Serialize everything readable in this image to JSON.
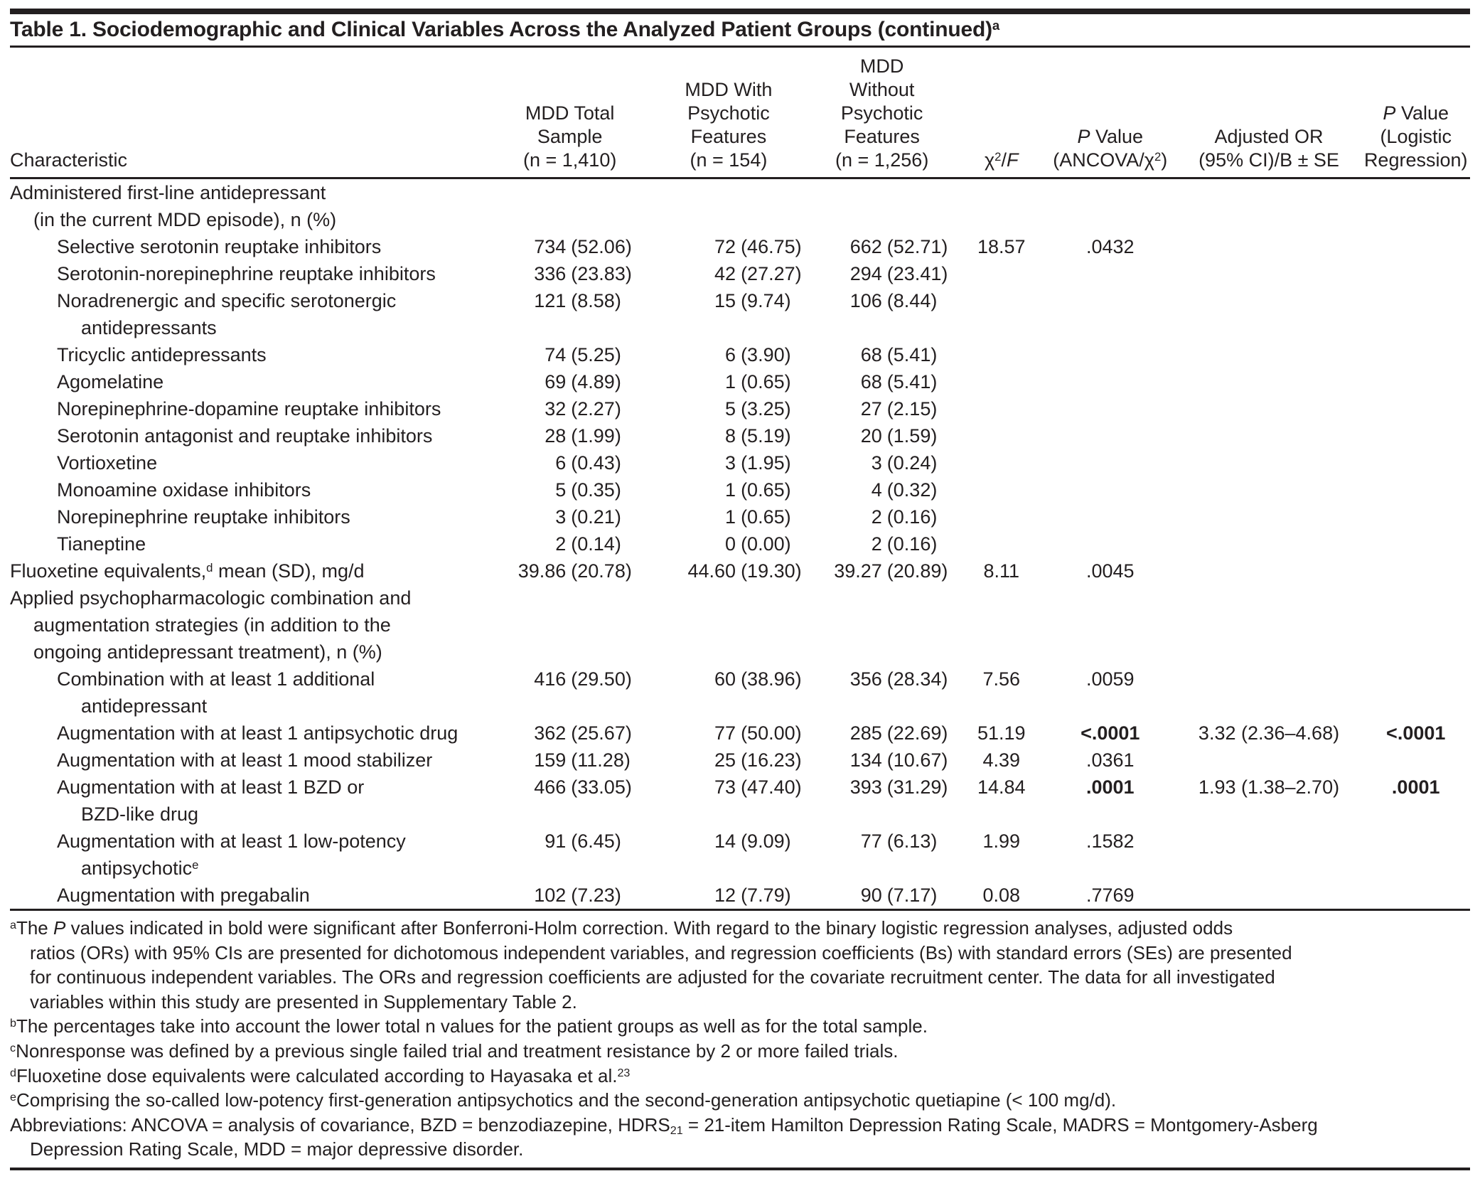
{
  "title": "Table 1. Sociodemographic and Clinical Variables Across the Analyzed Patient Groups (continued)^{a}",
  "colors": {
    "text": "#231f20",
    "rule": "#231f20",
    "background": "#ffffff",
    "significant_bold": "#231f20"
  },
  "table": {
    "headers": [
      "Characteristic",
      "MDD Total\nSample\n(n = 1,410)",
      "MDD With\nPsychotic\nFeatures\n(n = 154)",
      "MDD\nWithout\nPsychotic\nFeatures\n(n = 1,256)",
      "χ^{2}/*F*",
      "*P* Value\n(ANCOVA/χ^{2})",
      "Adjusted OR\n(95% CI)/B ± SE",
      "*P* Value\n(Logistic\nRegression)"
    ],
    "rows": [
      {
        "label": "Administered first-line antidepressant",
        "indent": 0,
        "cells": []
      },
      {
        "label": "(in the current MDD episode), n (%)",
        "indent": 1,
        "cells": []
      },
      {
        "label": "Selective serotonin reuptake inhibitors",
        "indent": 2,
        "cells": [
          "734 (52.06)",
          "72 (46.75)",
          "662 (52.71)",
          "18.57",
          ".0432",
          "",
          ""
        ]
      },
      {
        "label": "Serotonin-norepinephrine reuptake inhibitors",
        "indent": 2,
        "cells": [
          "336 (23.83)",
          "42 (27.27)",
          "294 (23.41)",
          "",
          "",
          "",
          ""
        ]
      },
      {
        "label": "Noradrenergic and specific serotonergic",
        "indent": 2,
        "cells": [
          "121 (8.58)",
          "15 (9.74)",
          "106 (8.44)",
          "",
          "",
          "",
          ""
        ]
      },
      {
        "label": "antidepressants",
        "indent": 3,
        "cells": []
      },
      {
        "label": "Tricyclic antidepressants",
        "indent": 2,
        "cells": [
          "74 (5.25)",
          "6 (3.90)",
          "68 (5.41)",
          "",
          "",
          "",
          ""
        ]
      },
      {
        "label": "Agomelatine",
        "indent": 2,
        "cells": [
          "69 (4.89)",
          "1 (0.65)",
          "68 (5.41)",
          "",
          "",
          "",
          ""
        ]
      },
      {
        "label": "Norepinephrine-dopamine reuptake inhibitors",
        "indent": 2,
        "cells": [
          "32 (2.27)",
          "5 (3.25)",
          "27 (2.15)",
          "",
          "",
          "",
          ""
        ]
      },
      {
        "label": "Serotonin antagonist and reuptake inhibitors",
        "indent": 2,
        "cells": [
          "28 (1.99)",
          "8 (5.19)",
          "20 (1.59)",
          "",
          "",
          "",
          ""
        ]
      },
      {
        "label": "Vortioxetine",
        "indent": 2,
        "cells": [
          "6 (0.43)",
          "3 (1.95)",
          "3 (0.24)",
          "",
          "",
          "",
          ""
        ]
      },
      {
        "label": "Monoamine oxidase inhibitors",
        "indent": 2,
        "cells": [
          "5 (0.35)",
          "1 (0.65)",
          "4 (0.32)",
          "",
          "",
          "",
          ""
        ]
      },
      {
        "label": "Norepinephrine reuptake inhibitors",
        "indent": 2,
        "cells": [
          "3 (0.21)",
          "1 (0.65)",
          "2 (0.16)",
          "",
          "",
          "",
          ""
        ]
      },
      {
        "label": "Tianeptine",
        "indent": 2,
        "cells": [
          "2 (0.14)",
          "0 (0.00)",
          "2 (0.16)",
          "",
          "",
          "",
          ""
        ]
      },
      {
        "label": "Fluoxetine equivalents,^{d} mean (SD), mg/d",
        "indent": 0,
        "cells": [
          "39.86 (20.78)",
          "44.60 (19.30)",
          "39.27 (20.89)",
          "8.11",
          ".0045",
          "",
          ""
        ]
      },
      {
        "label": "Applied psychopharmacologic combination and",
        "indent": 0,
        "cells": []
      },
      {
        "label": "augmentation strategies (in addition to the",
        "indent": 1,
        "cells": []
      },
      {
        "label": "ongoing antidepressant treatment), n (%)",
        "indent": 1,
        "cells": []
      },
      {
        "label": "Combination with at least 1 additional",
        "indent": 2,
        "cells": [
          "416 (29.50)",
          "60 (38.96)",
          "356 (28.34)",
          "7.56",
          ".0059",
          "",
          ""
        ]
      },
      {
        "label": "antidepressant",
        "indent": 3,
        "cells": []
      },
      {
        "label": "Augmentation with at least 1 antipsychotic drug",
        "indent": 2,
        "cells": [
          "362 (25.67)",
          "77 (50.00)",
          "285 (22.69)",
          "51.19",
          "**<.0001**",
          "3.32 (2.36–4.68)",
          "**<.0001**"
        ]
      },
      {
        "label": "Augmentation with at least 1 mood stabilizer",
        "indent": 2,
        "cells": [
          "159 (11.28)",
          "25 (16.23)",
          "134 (10.67)",
          "4.39",
          ".0361",
          "",
          ""
        ]
      },
      {
        "label": "Augmentation with at least 1 BZD or",
        "indent": 2,
        "cells": [
          "466 (33.05)",
          "73 (47.40)",
          "393 (31.29)",
          "14.84",
          "**.0001**",
          "1.93 (1.38–2.70)",
          "**.0001**"
        ]
      },
      {
        "label": "BZD-like drug",
        "indent": 3,
        "cells": []
      },
      {
        "label": "Augmentation with at least 1 low-potency",
        "indent": 2,
        "cells": [
          "91 (6.45)",
          "14 (9.09)",
          "77 (6.13)",
          "1.99",
          ".1582",
          "",
          ""
        ]
      },
      {
        "label": "antipsychotic^{e}",
        "indent": 3,
        "cells": []
      },
      {
        "label": "Augmentation with pregabalin",
        "indent": 2,
        "cells": [
          "102 (7.23)",
          "12 (7.79)",
          "90 (7.17)",
          "0.08",
          ".7769",
          "",
          ""
        ]
      }
    ]
  },
  "footnotes": {
    "a": "^{a}The *P* values indicated in bold were significant after Bonferroni-Holm correction. With regard to the binary logistic regression analyses, adjusted odds\nratios (ORs) with 95% CIs are presented for dichotomous independent variables, and regression coefficients (Bs) with standard errors (SEs) are presented\nfor continuous independent variables. The ORs and regression coefficients are adjusted for the covariate recruitment center. The data for all investigated\nvariables within this study are presented in Supplementary Table 2.",
    "b": "^{b}The percentages take into account the lower total n values for the patient groups as well as for the total sample.",
    "c": "^{c}Nonresponse was defined by a previous single failed trial and treatment resistance by 2 or more failed trials.",
    "d": "^{d}Fluoxetine dose equivalents were calculated according to Hayasaka et al.^{23}",
    "e": "^{e}Comprising the so-called low-potency first-generation antipsychotics and the second-generation antipsychotic quetiapine (< 100 mg/d).",
    "abbreviations": "Abbreviations: ANCOVA = analysis of covariance, BZD = benzodiazepine, HDRS_{21} = 21-item Hamilton Depression Rating Scale, MADRS = Montgomery-Asberg\nDepression Rating Scale, MDD = major depressive disorder."
  }
}
